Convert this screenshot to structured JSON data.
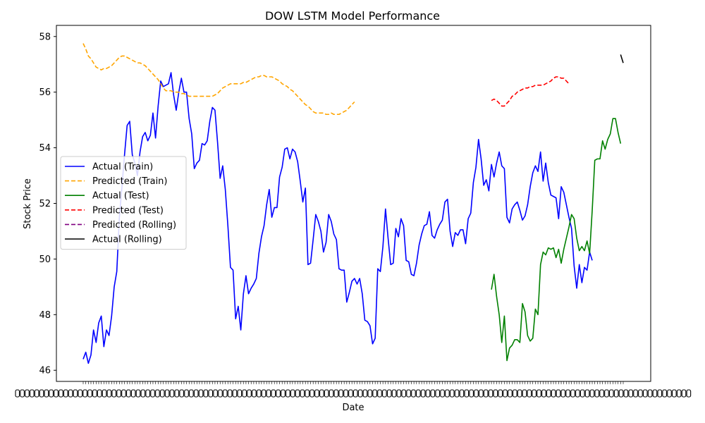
{
  "chart_data": {
    "type": "line",
    "title": "DOW LSTM Model Performance",
    "xlabel": "Date",
    "ylabel": "Stock Price",
    "ylim": [
      45.6,
      58.4
    ],
    "yticks": [
      46,
      48,
      50,
      52,
      54,
      56,
      58
    ],
    "x_tick_labels_note": "",
    "legend_position": "center-left",
    "grid": false,
    "n_total": 210,
    "series": [
      {
        "name": "Actual (Train)",
        "color": "#0000ff",
        "style": "solid",
        "start": 0,
        "values": [
          46.4,
          46.65,
          46.25,
          46.55,
          47.45,
          47.0,
          47.7,
          47.95,
          46.85,
          47.45,
          47.25,
          47.95,
          49.0,
          49.55,
          51.5,
          52.6,
          53.75,
          54.8,
          54.95,
          53.75,
          53.45,
          53.0,
          53.85,
          54.4,
          54.55,
          54.25,
          54.45,
          55.25,
          54.35,
          55.5,
          56.4,
          56.2,
          56.25,
          56.3,
          56.7,
          55.9,
          55.35,
          56.0,
          56.5,
          56.0,
          56.0,
          55.05,
          54.5,
          53.25,
          53.45,
          53.55,
          54.15,
          54.1,
          54.25,
          54.95,
          55.45,
          55.35,
          54.2,
          52.9,
          53.35,
          52.5,
          51.2,
          49.7,
          49.6,
          47.85,
          48.3,
          47.45,
          48.75,
          49.4,
          48.75,
          48.95,
          49.1,
          49.3,
          50.2,
          50.8,
          51.2,
          51.95,
          52.5,
          51.5,
          51.85,
          51.85,
          52.95,
          53.3,
          53.95,
          54.0,
          53.6,
          53.95,
          53.85,
          53.5,
          52.8,
          52.05,
          52.55,
          49.8,
          49.85,
          50.7,
          51.6,
          51.35,
          51.0,
          50.25,
          50.6,
          51.6,
          51.35,
          50.9,
          50.7,
          49.65,
          49.6,
          49.6,
          48.45,
          48.8,
          49.2,
          49.3,
          49.1,
          49.3,
          48.75,
          47.8,
          47.75,
          47.6,
          46.95,
          47.15,
          49.65,
          49.55,
          50.45,
          51.8,
          50.75,
          49.8,
          49.85,
          51.1,
          50.8,
          51.45,
          51.2,
          49.95,
          49.9,
          49.45,
          49.4,
          49.85,
          50.5,
          50.9,
          51.2,
          51.25,
          51.7,
          50.85,
          50.75,
          51.05,
          51.25,
          51.4,
          52.05,
          52.15,
          51.0,
          50.45,
          50.95,
          50.85,
          51.05,
          51.05,
          50.55,
          51.45,
          51.65,
          52.75,
          53.3,
          54.3,
          53.6,
          52.65,
          52.85,
          52.45,
          53.4,
          52.95,
          53.45,
          53.85,
          53.35,
          53.25,
          51.5,
          51.3,
          51.8,
          51.95,
          52.05,
          51.75,
          51.4,
          51.55,
          51.95,
          52.6,
          53.1,
          53.35,
          53.15,
          53.85,
          52.8,
          53.45,
          52.75,
          52.3,
          52.25,
          52.2,
          51.45,
          52.6,
          52.4,
          51.95,
          51.5,
          51.1,
          49.75,
          48.95,
          49.8,
          49.15,
          49.7,
          49.6,
          50.25,
          49.95
        ]
      },
      {
        "name": "Predicted (Train)",
        "color": "#ffa500",
        "style": "dashed",
        "start": 0,
        "values": [
          57.75,
          57.55,
          57.3,
          57.2,
          57.05,
          56.9,
          56.85,
          56.8,
          56.85,
          56.85,
          56.9,
          56.95,
          57.05,
          57.15,
          57.25,
          57.3,
          57.3,
          57.25,
          57.2,
          57.15,
          57.1,
          57.05,
          57.05,
          57.0,
          56.95,
          56.85,
          56.75,
          56.65,
          56.55,
          56.45,
          56.3,
          56.15,
          56.05,
          56.05,
          56.05,
          56.0,
          56.0,
          56.0,
          55.95,
          55.95,
          55.9,
          55.85,
          55.85,
          55.85,
          55.85,
          55.85,
          55.85,
          55.85,
          55.85,
          55.85,
          55.85,
          55.9,
          55.95,
          56.05,
          56.15,
          56.2,
          56.25,
          56.3,
          56.3,
          56.3,
          56.3,
          56.3,
          56.35,
          56.35,
          56.4,
          56.45,
          56.5,
          56.55,
          56.55,
          56.6,
          56.6,
          56.55,
          56.55,
          56.55,
          56.5,
          56.45,
          56.4,
          56.3,
          56.25,
          56.2,
          56.1,
          56.05,
          55.95,
          55.85,
          55.75,
          55.65,
          55.55,
          55.5,
          55.4,
          55.3,
          55.25,
          55.25,
          55.25,
          55.25,
          55.2,
          55.2,
          55.25,
          55.2,
          55.2,
          55.2,
          55.25,
          55.3,
          55.35,
          55.45,
          55.55,
          55.65
        ]
      },
      {
        "name": "Actual (Test)",
        "color": "#008000",
        "style": "solid",
        "start": 158,
        "values": [
          48.9,
          49.45,
          48.65,
          48.0,
          47.0,
          47.95,
          46.35,
          46.8,
          46.9,
          47.1,
          47.1,
          47.0,
          48.4,
          48.1,
          47.25,
          47.05,
          47.15,
          48.2,
          48.0,
          49.8,
          50.25,
          50.15,
          50.4,
          50.35,
          50.4,
          50.05,
          50.35,
          49.85,
          50.35,
          50.75,
          51.15,
          51.6,
          51.45,
          50.75,
          50.3,
          50.45,
          50.3,
          50.65,
          50.2,
          51.75,
          53.55,
          53.6,
          53.6,
          54.25,
          53.95,
          54.3,
          54.5,
          55.05,
          55.05,
          54.55,
          54.15
        ]
      },
      {
        "name": "Predicted (Test)",
        "color": "#ff0000",
        "style": "dashed",
        "start": 158,
        "values": [
          55.7,
          55.75,
          55.7,
          55.6,
          55.5,
          55.5,
          55.6,
          55.7,
          55.85,
          55.9,
          56.0,
          56.05,
          56.1,
          56.15,
          56.15,
          56.2,
          56.2,
          56.25,
          56.25,
          56.25,
          56.25,
          56.3,
          56.35,
          56.4,
          56.5,
          56.55,
          56.55,
          56.5,
          56.5,
          56.4,
          56.3
        ]
      },
      {
        "name": "Predicted (Rolling)",
        "color": "#800080",
        "style": "dashed",
        "start": 209,
        "values": []
      },
      {
        "name": "Actual (Rolling)",
        "color": "#000000",
        "style": "solid",
        "start": 208,
        "values": [
          57.35,
          57.05
        ]
      }
    ]
  }
}
